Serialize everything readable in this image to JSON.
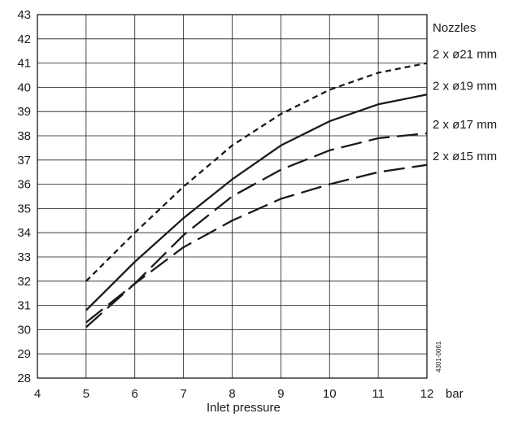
{
  "chart_data": {
    "type": "line",
    "xlabel": "Inlet pressure",
    "x_unit": "bar",
    "ylabel": "",
    "xlim": [
      4,
      12
    ],
    "ylim": [
      28,
      43
    ],
    "x_ticks": [
      4,
      5,
      6,
      7,
      8,
      9,
      10,
      11,
      12
    ],
    "y_ticks": [
      28,
      29,
      30,
      31,
      32,
      33,
      34,
      35,
      36,
      37,
      38,
      39,
      40,
      41,
      42,
      43
    ],
    "grid": true,
    "legend_title": "Nozzles",
    "doc_id": "4301-0061",
    "series": [
      {
        "name": "2 x ø21 mm",
        "style": "short-dash",
        "x": [
          5,
          6,
          7,
          8,
          9,
          10,
          11,
          12
        ],
        "y": [
          32.0,
          34.0,
          35.9,
          37.6,
          38.9,
          39.9,
          40.6,
          41.0
        ]
      },
      {
        "name": "2 x ø19 mm",
        "style": "solid",
        "x": [
          5,
          6,
          7,
          8,
          9,
          10,
          11,
          12
        ],
        "y": [
          30.8,
          32.8,
          34.6,
          36.2,
          37.6,
          38.6,
          39.3,
          39.7
        ]
      },
      {
        "name": "2 x ø17 mm",
        "style": "long-dash",
        "x": [
          5,
          6,
          7,
          8,
          9,
          10,
          11,
          12
        ],
        "y": [
          30.3,
          31.9,
          33.9,
          35.5,
          36.6,
          37.4,
          37.9,
          38.1
        ]
      },
      {
        "name": "2 x ø15 mm",
        "style": "long-dash",
        "x": [
          5,
          6,
          7,
          8,
          9,
          10,
          11,
          12
        ],
        "y": [
          30.1,
          31.9,
          33.4,
          34.5,
          35.4,
          36.0,
          36.5,
          36.8
        ]
      }
    ]
  }
}
